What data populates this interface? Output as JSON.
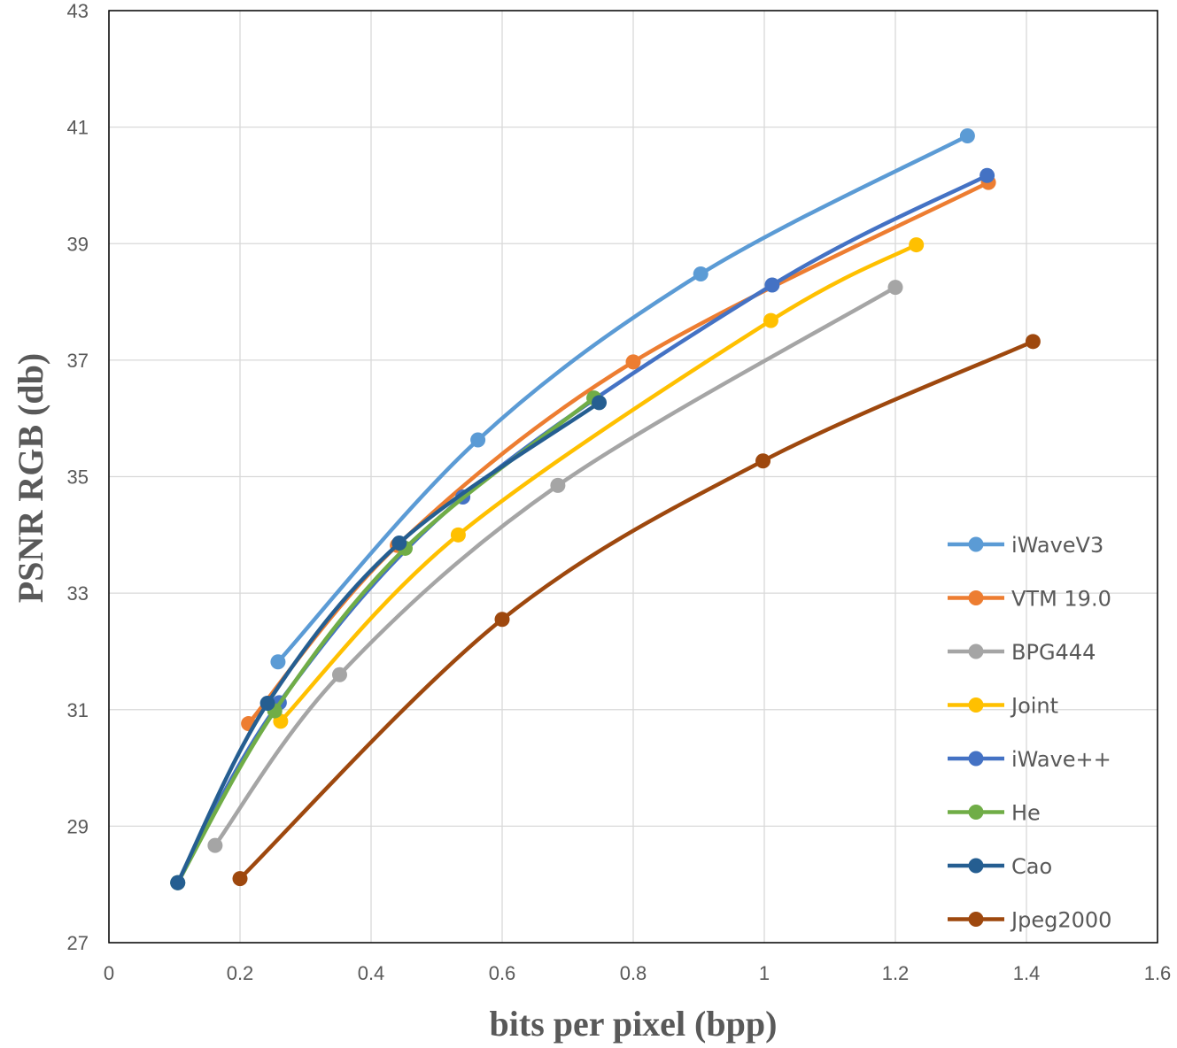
{
  "chart_data": {
    "type": "line",
    "title": "",
    "xlabel": "bits per pixel (bpp)",
    "ylabel": "PSNR RGB (db)",
    "xlim": [
      0,
      1.6
    ],
    "ylim": [
      27,
      43
    ],
    "xticks": [
      0,
      0.2,
      0.4,
      0.6,
      0.8,
      1,
      1.2,
      1.4,
      1.6
    ],
    "xtick_labels": [
      "0",
      "0.2",
      "0.4",
      "0.6",
      "0.8",
      "1",
      "1.2",
      "1.4",
      "1.6"
    ],
    "yticks": [
      27,
      29,
      31,
      33,
      35,
      37,
      39,
      41,
      43
    ],
    "ytick_labels": [
      "27",
      "29",
      "31",
      "33",
      "35",
      "37",
      "39",
      "41",
      "43"
    ],
    "grid": true,
    "legend_position": "right",
    "series": [
      {
        "name": "iWaveV3",
        "color": "#5B9BD5",
        "x": [
          0.258,
          0.563,
          0.903,
          1.31
        ],
        "y": [
          31.82,
          35.63,
          38.48,
          40.85
        ]
      },
      {
        "name": "VTM 19.0",
        "color": "#ED7D31",
        "x": [
          0.213,
          0.44,
          0.8,
          1.342
        ],
        "y": [
          30.76,
          33.82,
          36.97,
          40.05
        ]
      },
      {
        "name": "BPG444",
        "color": "#A5A5A5",
        "x": [
          0.162,
          0.352,
          0.685,
          1.2
        ],
        "y": [
          28.67,
          31.6,
          34.85,
          38.25
        ]
      },
      {
        "name": "Joint",
        "color": "#FFC000",
        "x": [
          0.262,
          0.533,
          1.01,
          1.232
        ],
        "y": [
          30.8,
          34.0,
          37.68,
          38.98
        ]
      },
      {
        "name": "iWave++",
        "color": "#4472C4",
        "x": [
          0.105,
          0.26,
          0.54,
          1.012,
          1.34
        ],
        "y": [
          28.03,
          31.12,
          34.65,
          38.29,
          40.17
        ]
      },
      {
        "name": "He",
        "color": "#70AD47",
        "x": [
          0.105,
          0.253,
          0.452,
          0.74
        ],
        "y": [
          28.03,
          30.98,
          33.77,
          36.35
        ]
      },
      {
        "name": "Cao",
        "color": "#255E91",
        "x": [
          0.105,
          0.242,
          0.443,
          0.748
        ],
        "y": [
          28.03,
          31.11,
          33.86,
          36.27
        ]
      },
      {
        "name": "Jpeg2000",
        "color": "#9E480E",
        "x": [
          0.2,
          0.6,
          0.998,
          1.41
        ],
        "y": [
          28.1,
          32.55,
          35.27,
          37.32
        ]
      }
    ]
  }
}
